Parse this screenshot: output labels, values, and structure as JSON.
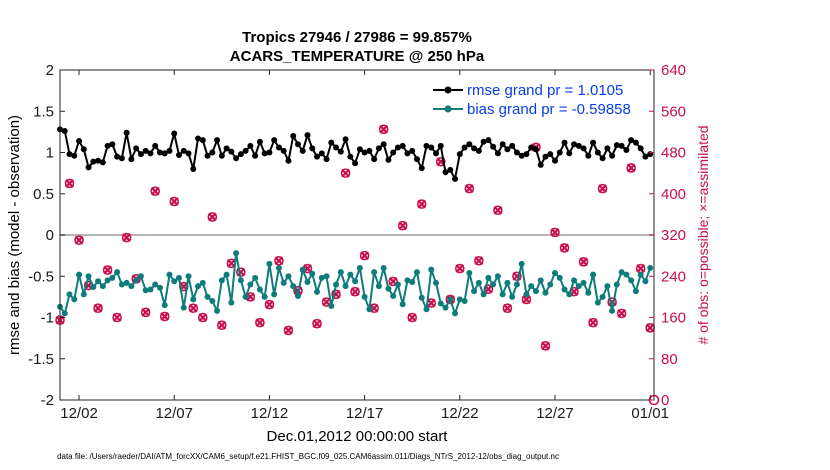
{
  "chart_data": {
    "type": "line",
    "title": "Tropics 27946 / 27986 = 99.857%",
    "subtitle": "ACARS_TEMPERATURE @ 250 hPa",
    "xlabel": "Dec.01,2012 00:00:00 start",
    "ylabel": "rmse and bias (model - observation)",
    "ylabel_right": "# of obs: o=possible; ×=assimilated",
    "xlim": [
      0,
      31.2
    ],
    "ylim": [
      -2,
      2
    ],
    "ylim_right": [
      0,
      640
    ],
    "x_ticks": [
      1,
      6,
      11,
      16,
      21,
      26,
      31
    ],
    "x_tick_labels": [
      "12/02",
      "12/07",
      "12/12",
      "12/17",
      "12/22",
      "12/27",
      "01/01"
    ],
    "y_ticks": [
      -2,
      -1.5,
      -1,
      -0.5,
      0,
      0.5,
      1,
      1.5,
      2
    ],
    "y_tick_labels": [
      "-2",
      "-1.5",
      "-1",
      "-0.5",
      "0",
      "0.5",
      "1",
      "1.5",
      "2"
    ],
    "y_right_ticks": [
      0,
      80,
      160,
      240,
      320,
      400,
      480,
      560,
      640
    ],
    "y_right_tick_labels": [
      "0",
      "80",
      "160",
      "240",
      "320",
      "400",
      "480",
      "560",
      "640"
    ],
    "zero_line": 0,
    "legend_position": "top-right",
    "series": [
      {
        "name": "rmse grand pr = 1.0105",
        "color": "#000000",
        "marker": "dot",
        "axis": "left",
        "x": [
          0.0,
          0.25,
          0.5,
          0.75,
          1.0,
          1.25,
          1.5,
          1.75,
          2.0,
          2.25,
          2.5,
          2.75,
          3.0,
          3.25,
          3.5,
          3.75,
          4.0,
          4.25,
          4.5,
          4.75,
          5.0,
          5.25,
          5.5,
          5.75,
          6.0,
          6.25,
          6.5,
          6.75,
          7.0,
          7.25,
          7.5,
          7.75,
          8.0,
          8.25,
          8.5,
          8.75,
          9.0,
          9.25,
          9.5,
          9.75,
          10.0,
          10.25,
          10.5,
          10.75,
          11.0,
          11.25,
          11.5,
          11.75,
          12.0,
          12.25,
          12.5,
          12.75,
          13.0,
          13.25,
          13.5,
          13.75,
          14.0,
          14.25,
          14.5,
          14.75,
          15.0,
          15.25,
          15.5,
          15.75,
          16.0,
          16.25,
          16.5,
          16.75,
          17.0,
          17.25,
          17.5,
          17.75,
          18.0,
          18.25,
          18.5,
          18.75,
          19.0,
          19.25,
          19.5,
          19.75,
          20.0,
          20.25,
          20.5,
          20.75,
          21.0,
          21.25,
          21.5,
          21.75,
          22.0,
          22.25,
          22.5,
          22.75,
          23.0,
          23.25,
          23.5,
          23.75,
          24.0,
          24.25,
          24.5,
          24.75,
          25.0,
          25.25,
          25.5,
          25.75,
          26.0,
          26.25,
          26.5,
          26.75,
          27.0,
          27.25,
          27.5,
          27.75,
          28.0,
          28.25,
          28.5,
          28.75,
          29.0,
          29.25,
          29.5,
          29.75,
          30.0,
          30.25,
          30.5,
          30.75,
          31.0
        ],
        "y": [
          1.28,
          1.26,
          0.98,
          0.96,
          1.14,
          1.04,
          0.82,
          0.89,
          0.9,
          0.88,
          1.08,
          1.1,
          0.95,
          0.93,
          1.24,
          0.92,
          1.05,
          0.98,
          1.02,
          0.99,
          1.08,
          1.0,
          0.99,
          1.02,
          1.23,
          0.97,
          1.02,
          0.99,
          0.8,
          1.17,
          1.15,
          0.96,
          1.0,
          1.15,
          0.96,
          1.05,
          1.01,
          0.93,
          0.98,
          1.02,
          1.08,
          0.96,
          1.13,
          0.99,
          1.0,
          1.15,
          1.06,
          1.02,
          0.9,
          1.2,
          1.1,
          1.02,
          1.21,
          1.05,
          0.95,
          0.99,
          0.92,
          1.12,
          1.06,
          1.01,
          1.16,
          0.95,
          0.87,
          1.04,
          1.0,
          1.02,
          0.92,
          1.05,
          1.1,
          0.91,
          1.0,
          1.06,
          1.08,
          0.99,
          1.02,
          0.92,
          0.81,
          1.08,
          1.06,
          0.99,
          1.08,
          0.76,
          0.79,
          0.68,
          0.98,
          1.06,
          1.1,
          1.05,
          1.02,
          1.13,
          1.15,
          1.07,
          0.99,
          1.1,
          1.04,
          1.08,
          1.0,
          0.96,
          0.98,
          1.06,
          1.04,
          0.85,
          0.95,
          0.98,
          0.9,
          1.0,
          1.12,
          0.99,
          1.1,
          1.08,
          1.05,
          0.96,
          1.12,
          1.0,
          0.93,
          1.05,
          0.96,
          1.09,
          1.08,
          1.03,
          1.15,
          1.12,
          1.05,
          0.95,
          0.98
        ],
        "y_note": "visual estimate"
      },
      {
        "name": "bias grand pr = -0.59858",
        "color": "#0e7c7b",
        "marker": "dot",
        "axis": "left",
        "x": [
          0.0,
          0.25,
          0.5,
          0.75,
          1.0,
          1.25,
          1.5,
          1.75,
          2.0,
          2.25,
          2.5,
          2.75,
          3.0,
          3.25,
          3.5,
          3.75,
          4.0,
          4.25,
          4.5,
          4.75,
          5.0,
          5.25,
          5.5,
          5.75,
          6.0,
          6.25,
          6.5,
          6.75,
          7.0,
          7.25,
          7.5,
          7.75,
          8.0,
          8.25,
          8.5,
          8.75,
          9.0,
          9.25,
          9.5,
          9.75,
          10.0,
          10.25,
          10.5,
          10.75,
          11.0,
          11.25,
          11.5,
          11.75,
          12.0,
          12.25,
          12.5,
          12.75,
          13.0,
          13.25,
          13.5,
          13.75,
          14.0,
          14.25,
          14.5,
          14.75,
          15.0,
          15.25,
          15.5,
          15.75,
          16.0,
          16.25,
          16.5,
          16.75,
          17.0,
          17.25,
          17.5,
          17.75,
          18.0,
          18.25,
          18.5,
          18.75,
          19.0,
          19.25,
          19.5,
          19.75,
          20.0,
          20.25,
          20.5,
          20.75,
          21.0,
          21.25,
          21.5,
          21.75,
          22.0,
          22.25,
          22.5,
          22.75,
          23.0,
          23.25,
          23.5,
          23.75,
          24.0,
          24.25,
          24.5,
          24.75,
          25.0,
          25.25,
          25.5,
          25.75,
          26.0,
          26.25,
          26.5,
          26.75,
          27.0,
          27.25,
          27.5,
          27.75,
          28.0,
          28.25,
          28.5,
          28.75,
          29.0,
          29.25,
          29.5,
          29.75,
          30.0,
          30.25,
          30.5,
          30.75,
          31.0
        ],
        "y": [
          -0.87,
          -0.95,
          -0.72,
          -0.78,
          -0.48,
          -0.72,
          -0.5,
          -0.63,
          -0.56,
          -0.62,
          -0.55,
          -0.52,
          -0.45,
          -0.6,
          -0.58,
          -0.62,
          -0.55,
          -0.5,
          -0.67,
          -0.66,
          -0.6,
          -0.64,
          -0.85,
          -0.48,
          -0.56,
          -0.52,
          -0.88,
          -0.5,
          -0.78,
          -0.62,
          -0.58,
          -0.75,
          -0.8,
          -0.92,
          -0.55,
          -0.48,
          -0.82,
          -0.22,
          -0.55,
          -0.75,
          -0.6,
          -0.52,
          -0.66,
          -0.75,
          -0.35,
          -0.72,
          -0.4,
          -0.58,
          -0.5,
          -0.62,
          -0.74,
          -0.42,
          -0.57,
          -0.47,
          -0.69,
          -0.52,
          -0.5,
          -0.86,
          -0.6,
          -0.45,
          -0.62,
          -0.48,
          -0.56,
          -0.4,
          -0.75,
          -0.9,
          -0.45,
          -0.62,
          -0.4,
          -0.65,
          -0.74,
          -0.6,
          -0.84,
          -0.55,
          -0.57,
          -0.45,
          -0.76,
          -0.9,
          -0.42,
          -0.58,
          -0.83,
          -0.88,
          -0.78,
          -0.95,
          -0.78,
          -0.8,
          -0.46,
          -0.68,
          -0.58,
          -0.72,
          -0.52,
          -0.6,
          -0.5,
          -0.72,
          -0.58,
          -0.75,
          -0.6,
          -0.35,
          -0.72,
          -0.62,
          -0.68,
          -0.55,
          -0.7,
          -0.6,
          -0.46,
          -0.52,
          -0.66,
          -0.72,
          -0.55,
          -0.62,
          -0.58,
          -0.7,
          -0.48,
          -0.82,
          -0.75,
          -0.62,
          -0.92,
          -0.6,
          -0.45,
          -0.48,
          -0.55,
          -0.68,
          -0.48,
          -0.56,
          -0.4
        ],
        "y_note": "visual estimate"
      },
      {
        "name": "# of obs possible (o)",
        "color": "#c8104e",
        "marker": "circle",
        "axis": "right",
        "in_legend": false,
        "x": [
          0.0,
          0.5,
          1.0,
          1.5,
          2.0,
          2.5,
          3.0,
          3.5,
          4.0,
          4.5,
          5.0,
          5.5,
          6.0,
          6.5,
          7.0,
          7.5,
          8.0,
          8.5,
          9.0,
          9.5,
          10.0,
          10.5,
          11.0,
          11.5,
          12.0,
          12.5,
          13.0,
          13.5,
          14.0,
          14.5,
          15.0,
          15.5,
          16.0,
          16.5,
          17.0,
          17.5,
          18.0,
          18.5,
          19.0,
          19.5,
          20.0,
          20.5,
          21.0,
          21.5,
          22.0,
          22.5,
          23.0,
          23.5,
          24.0,
          24.5,
          25.0,
          25.5,
          26.0,
          26.5,
          27.0,
          27.5,
          28.0,
          28.5,
          29.0,
          29.5,
          30.0,
          30.5,
          31.0
        ],
        "y": [
          155,
          420,
          310,
          222,
          178,
          252,
          160,
          315,
          235,
          170,
          405,
          162,
          385,
          220,
          178,
          160,
          355,
          145,
          265,
          248,
          200,
          150,
          185,
          270,
          135,
          212,
          255,
          148,
          190,
          205,
          440,
          210,
          280,
          178,
          525,
          230,
          338,
          160,
          380,
          188,
          462,
          195,
          255,
          410,
          270,
          215,
          368,
          178,
          240,
          195,
          490,
          105,
          325,
          295,
          210,
          268,
          150,
          410,
          190,
          168,
          450,
          255,
          140
        ],
        "y_note": "visual estimate"
      },
      {
        "name": "# of obs assimilated (×)",
        "color": "#c8104e",
        "marker": "cross",
        "axis": "right",
        "in_legend": false,
        "x": [
          0.0,
          0.5,
          1.0,
          1.5,
          2.0,
          2.5,
          3.0,
          3.5,
          4.0,
          4.5,
          5.0,
          5.5,
          6.0,
          6.5,
          7.0,
          7.5,
          8.0,
          8.5,
          9.0,
          9.5,
          10.0,
          10.5,
          11.0,
          11.5,
          12.0,
          12.5,
          13.0,
          13.5,
          14.0,
          14.5,
          15.0,
          15.5,
          16.0,
          16.5,
          17.0,
          17.5,
          18.0,
          18.5,
          19.0,
          19.5,
          20.0,
          20.5,
          21.0,
          21.5,
          22.0,
          22.5,
          23.0,
          23.5,
          24.0,
          24.5,
          25.0,
          25.5,
          26.0,
          26.5,
          27.0,
          27.5,
          28.0,
          28.5,
          29.0,
          29.5,
          30.0,
          30.5,
          31.0
        ],
        "y": [
          155,
          420,
          310,
          222,
          178,
          252,
          160,
          315,
          235,
          170,
          405,
          162,
          385,
          220,
          178,
          160,
          355,
          145,
          265,
          248,
          200,
          150,
          185,
          270,
          135,
          212,
          255,
          148,
          190,
          205,
          440,
          210,
          280,
          178,
          525,
          230,
          338,
          160,
          380,
          188,
          462,
          195,
          255,
          410,
          270,
          215,
          368,
          178,
          240,
          195,
          490,
          105,
          325,
          295,
          210,
          268,
          150,
          410,
          190,
          168,
          450,
          255,
          140
        ],
        "y_note": "visual estimate"
      }
    ]
  },
  "footer": "data file: /Users/raeder/DAI/ATM_forcXX/CAM6_setup/f.e21.FHIST_BGC.f09_025.CAM6assim.011/Diags_NTrS_2012-12/obs_diag_output.nc"
}
